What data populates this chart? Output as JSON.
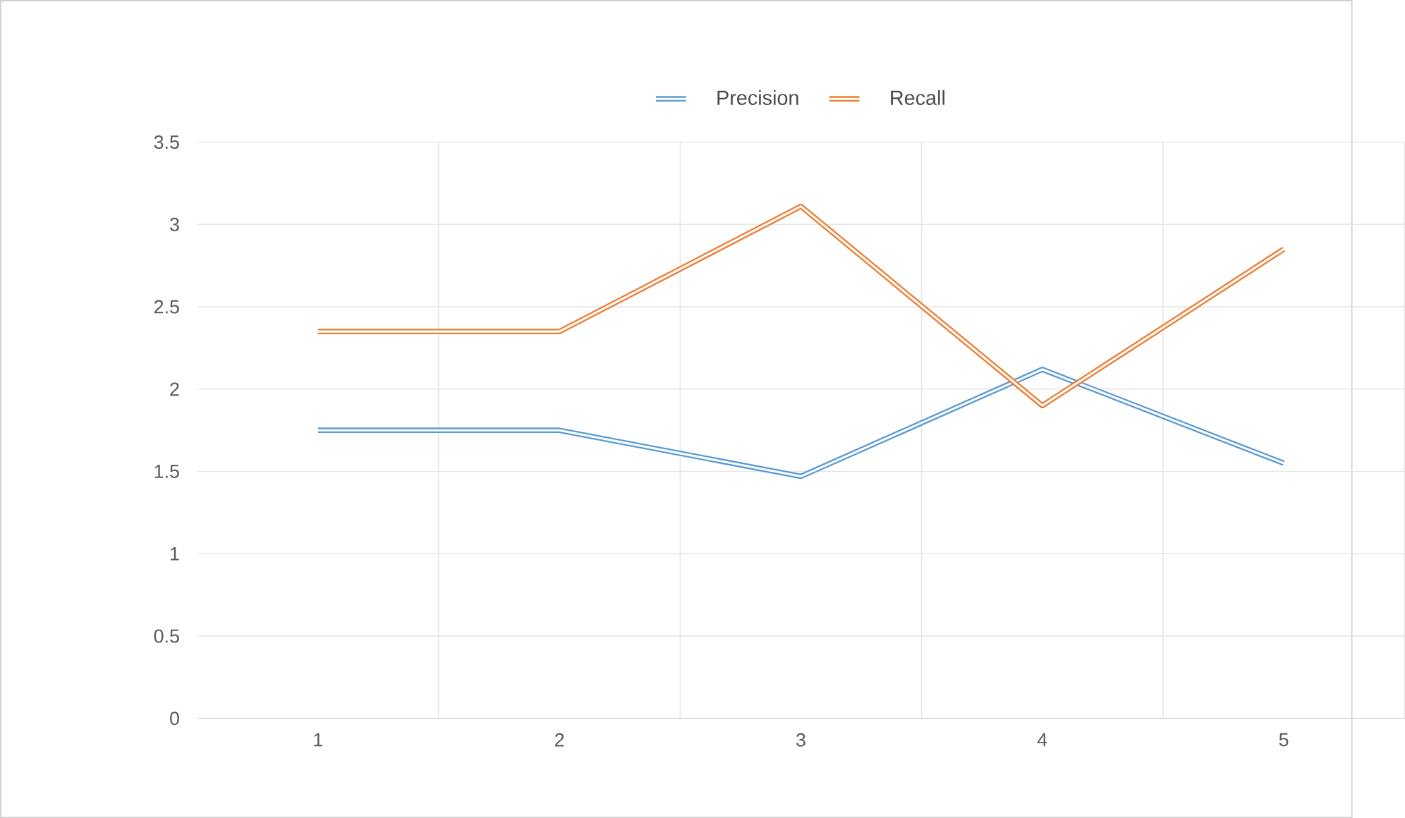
{
  "chart_data": {
    "type": "line",
    "categories": [
      "1",
      "2",
      "3",
      "4",
      "5"
    ],
    "series": [
      {
        "name": "Precision",
        "color": "#5b9bd5",
        "values": [
          1.75,
          1.75,
          1.47,
          2.12,
          1.55
        ]
      },
      {
        "name": "Recall",
        "color": "#ed7d31",
        "values": [
          2.35,
          2.35,
          3.11,
          1.9,
          2.85
        ]
      }
    ],
    "ylim": [
      0,
      3.5
    ],
    "yticks": [
      0,
      0.5,
      1,
      1.5,
      2,
      2.5,
      3,
      3.5
    ],
    "grid": true,
    "legend": "top",
    "marker": "none",
    "line_style": "solid"
  }
}
